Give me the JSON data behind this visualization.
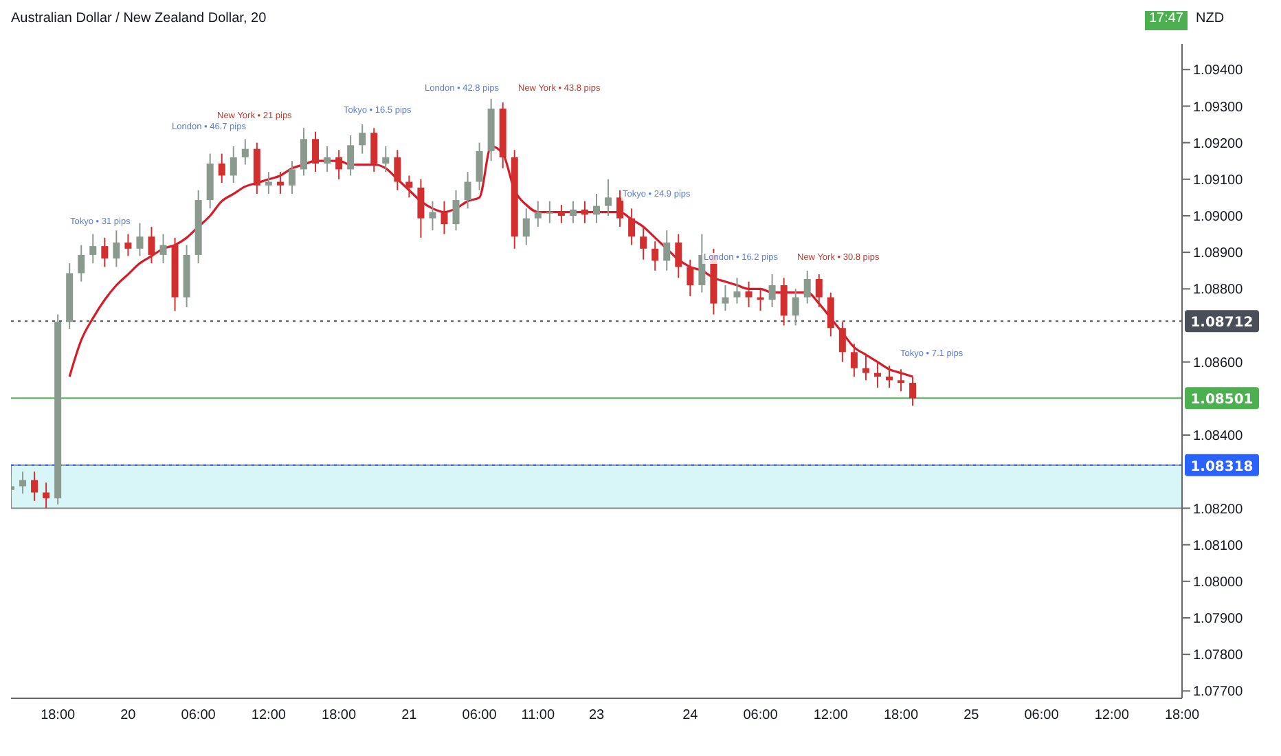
{
  "chart_data": {
    "type": "candlestick",
    "title": "Australian Dollar / New Zealand Dollar, 20",
    "ylabel": "NZD",
    "categories": [
      null,
      null,
      null,
      null,
      "18:00",
      null,
      null,
      null,
      null,
      null,
      "20",
      null,
      null,
      null,
      null,
      null,
      "06:00",
      null,
      null,
      null,
      null,
      null,
      "12:00",
      null,
      null,
      null,
      null,
      null,
      "18:00",
      null,
      null,
      null,
      null,
      null,
      "21",
      null,
      null,
      null,
      null,
      null,
      "06:00",
      null,
      null,
      null,
      null,
      "11:00",
      null,
      null,
      null,
      null,
      "23",
      null,
      null,
      null,
      null,
      null,
      null,
      null,
      "24",
      null,
      null,
      null,
      null,
      null,
      "06:00",
      null,
      null,
      null,
      null,
      null,
      "12:00",
      null,
      null,
      null,
      null,
      null,
      "18:00",
      null,
      null,
      null,
      null,
      null,
      "25",
      null,
      null,
      null,
      null,
      null,
      "06:00",
      null,
      null,
      null,
      null,
      null,
      "12:00",
      null,
      null,
      null,
      null,
      null,
      "18:00"
    ],
    "ohlc": [
      [
        1.0825,
        1.0829,
        1.0823,
        1.0826
      ],
      [
        1.0826,
        1.083,
        1.0824,
        1.08277
      ],
      [
        1.08277,
        1.083,
        1.0822,
        1.08243
      ],
      [
        1.08243,
        1.0827,
        1.082,
        1.08227
      ],
      [
        1.08227,
        1.0873,
        1.0821,
        1.0871
      ],
      [
        1.0871,
        1.0887,
        1.0869,
        1.08843
      ],
      [
        1.08843,
        1.0892,
        1.0882,
        1.08893
      ],
      [
        1.08893,
        1.0895,
        1.0887,
        1.08917
      ],
      [
        1.08917,
        1.0894,
        1.0886,
        1.08883
      ],
      [
        1.08883,
        1.0896,
        1.0886,
        1.08927
      ],
      [
        1.08927,
        1.0895,
        1.0889,
        1.0891
      ],
      [
        1.0891,
        1.0898,
        1.0889,
        1.08943
      ],
      [
        1.08943,
        1.0897,
        1.0887,
        1.08893
      ],
      [
        1.08893,
        1.0895,
        1.0887,
        1.0892
      ],
      [
        1.0892,
        1.0894,
        1.0874,
        1.08777
      ],
      [
        1.08777,
        1.0892,
        1.0875,
        1.08893
      ],
      [
        1.08893,
        1.0907,
        1.0887,
        1.09043
      ],
      [
        1.09043,
        1.0917,
        1.0902,
        1.09143
      ],
      [
        1.09143,
        1.0917,
        1.0909,
        1.0911
      ],
      [
        1.0911,
        1.0919,
        1.0909,
        1.0916
      ],
      [
        1.0916,
        1.0921,
        1.0914,
        1.09183
      ],
      [
        1.09183,
        1.092,
        1.0906,
        1.09083
      ],
      [
        1.09083,
        1.0912,
        1.0906,
        1.09093
      ],
      [
        1.09093,
        1.0912,
        1.0906,
        1.09083
      ],
      [
        1.09083,
        1.0915,
        1.0906,
        1.09127
      ],
      [
        1.09127,
        1.0924,
        1.0911,
        1.0921
      ],
      [
        1.0921,
        1.0923,
        1.0912,
        1.09143
      ],
      [
        1.09143,
        1.0919,
        1.0912,
        1.0916
      ],
      [
        1.0916,
        1.0918,
        1.091,
        1.09127
      ],
      [
        1.09127,
        1.0922,
        1.0911,
        1.09193
      ],
      [
        1.09193,
        1.0925,
        1.0917,
        1.09227
      ],
      [
        1.09227,
        1.0924,
        1.0912,
        1.09143
      ],
      [
        1.09143,
        1.0919,
        1.0912,
        1.0916
      ],
      [
        1.0916,
        1.0918,
        1.0907,
        1.09093
      ],
      [
        1.09093,
        1.0911,
        1.0905,
        1.09077
      ],
      [
        1.09077,
        1.091,
        1.0894,
        1.08993
      ],
      [
        1.08993,
        1.0904,
        1.0896,
        1.0901
      ],
      [
        1.0901,
        1.0904,
        1.0895,
        1.08977
      ],
      [
        1.08977,
        1.0907,
        1.0896,
        1.09043
      ],
      [
        1.09043,
        1.0912,
        1.0902,
        1.09093
      ],
      [
        1.09093,
        1.092,
        1.0907,
        1.09177
      ],
      [
        1.09177,
        1.0932,
        1.0915,
        1.09293
      ],
      [
        1.09293,
        1.0931,
        1.0913,
        1.0916
      ],
      [
        1.0916,
        1.0918,
        1.0891,
        1.08943
      ],
      [
        1.08943,
        1.0902,
        1.0892,
        1.08993
      ],
      [
        1.08993,
        1.0904,
        1.0897,
        1.0901
      ],
      [
        1.0901,
        1.0904,
        1.0898,
        1.0901
      ],
      [
        1.0901,
        1.0903,
        1.0898,
        1.09
      ],
      [
        1.09,
        1.0904,
        1.0898,
        1.09017
      ],
      [
        1.09017,
        1.0904,
        1.0898,
        1.09003
      ],
      [
        1.09003,
        1.0906,
        1.0898,
        1.09027
      ],
      [
        1.09027,
        1.091,
        1.09,
        1.0905
      ],
      [
        1.0905,
        1.0907,
        1.0897,
        1.08993
      ],
      [
        1.08993,
        1.0902,
        1.0892,
        1.08943
      ],
      [
        1.08943,
        1.0897,
        1.0888,
        1.0891
      ],
      [
        1.0891,
        1.0893,
        1.0885,
        1.08877
      ],
      [
        1.08877,
        1.0896,
        1.0885,
        1.08927
      ],
      [
        1.08927,
        1.0895,
        1.0883,
        1.0886
      ],
      [
        1.0886,
        1.0888,
        1.0878,
        1.0881
      ],
      [
        1.0881,
        1.0895,
        1.0879,
        1.08893
      ],
      [
        1.08893,
        1.0891,
        1.0873,
        1.0876
      ],
      [
        1.0876,
        1.0881,
        1.0874,
        1.08777
      ],
      [
        1.08777,
        1.0883,
        1.0876,
        1.08793
      ],
      [
        1.08793,
        1.0882,
        1.0875,
        1.08777
      ],
      [
        1.08777,
        1.088,
        1.0874,
        1.0877
      ],
      [
        1.0877,
        1.0884,
        1.0875,
        1.0881
      ],
      [
        1.0881,
        1.0883,
        1.087,
        1.08727
      ],
      [
        1.08727,
        1.088,
        1.087,
        1.08777
      ],
      [
        1.08777,
        1.0885,
        1.0876,
        1.08827
      ],
      [
        1.08827,
        1.0884,
        1.0875,
        1.08777
      ],
      [
        1.08777,
        1.0879,
        1.0867,
        1.08693
      ],
      [
        1.08693,
        1.0871,
        1.086,
        1.08627
      ],
      [
        1.08627,
        1.0865,
        1.0856,
        1.08583
      ],
      [
        1.08583,
        1.0862,
        1.0855,
        1.0857
      ],
      [
        1.0857,
        1.086,
        1.0853,
        1.0856
      ],
      [
        1.0856,
        1.0859,
        1.0853,
        1.0855
      ],
      [
        1.0855,
        1.0858,
        1.0852,
        1.08543
      ],
      [
        1.08543,
        1.0856,
        1.0848,
        1.08501
      ],
      null,
      null,
      null,
      null,
      null,
      null,
      null,
      null,
      null,
      null,
      null,
      null,
      null,
      null,
      null,
      null,
      null,
      null,
      null,
      null,
      null,
      null,
      null
    ],
    "colors": [
      "#8a9a8e",
      "#8a9a8e",
      "#d32f2f",
      "#d32f2f",
      "#8a9a8e",
      "#8a9a8e",
      "#8a9a8e",
      "#8a9a8e",
      "#d32f2f",
      "#8a9a8e",
      "#d32f2f",
      "#8a9a8e",
      "#d32f2f",
      "#8a9a8e",
      "#d32f2f",
      "#8a9a8e",
      "#8a9a8e",
      "#8a9a8e",
      "#d32f2f",
      "#8a9a8e",
      "#8a9a8e",
      "#d32f2f",
      "#8a9a8e",
      "#d32f2f",
      "#8a9a8e",
      "#8a9a8e",
      "#d32f2f",
      "#8a9a8e",
      "#d32f2f",
      "#8a9a8e",
      "#8a9a8e",
      "#d32f2f",
      "#8a9a8e",
      "#d32f2f",
      "#d32f2f",
      "#d32f2f",
      "#8a9a8e",
      "#d32f2f",
      "#8a9a8e",
      "#8a9a8e",
      "#8a9a8e",
      "#8a9a8e",
      "#d32f2f",
      "#d32f2f",
      "#8a9a8e",
      "#8a9a8e",
      "#8a9a8e",
      "#d32f2f",
      "#8a9a8e",
      "#d32f2f",
      "#8a9a8e",
      "#8a9a8e",
      "#d32f2f",
      "#d32f2f",
      "#d32f2f",
      "#d32f2f",
      "#8a9a8e",
      "#d32f2f",
      "#d32f2f",
      "#8a9a8e",
      "#d32f2f",
      "#8a9a8e",
      "#8a9a8e",
      "#d32f2f",
      "#d32f2f",
      "#8a9a8e",
      "#d32f2f",
      "#8a9a8e",
      "#8a9a8e",
      "#d32f2f",
      "#d32f2f",
      "#d32f2f",
      "#d32f2f",
      "#d32f2f",
      "#d32f2f",
      "#d32f2f",
      "#d32f2f",
      "#d32f2f",
      null,
      null,
      null,
      null,
      null,
      null,
      null,
      null,
      null,
      null,
      null,
      null,
      null,
      null,
      null,
      null,
      null,
      null,
      null,
      null,
      null,
      null,
      null
    ],
    "series": [
      {
        "type": "line",
        "color": "#d81b28",
        "values": [
          null,
          null,
          null,
          null,
          null,
          1.0856,
          1.0866,
          1.0872,
          1.0877,
          1.0881,
          1.0884,
          1.0887,
          1.0889,
          1.0891,
          1.0892,
          1.0894,
          1.0897,
          1.09,
          1.0904,
          1.0906,
          1.0908,
          1.0909,
          1.091,
          1.0911,
          1.0913,
          1.0914,
          1.0915,
          1.0915,
          1.0915,
          1.0914,
          1.0914,
          1.0914,
          1.0913,
          1.091,
          1.0907,
          1.0904,
          1.0902,
          1.0901,
          1.0902,
          1.0904,
          1.0905,
          1.0919,
          1.0917,
          1.0907,
          1.0903,
          1.0901,
          1.0901,
          1.0901,
          1.0901,
          1.0901,
          1.0901,
          1.0901,
          1.0901,
          1.0899,
          1.0897,
          1.0894,
          1.0891,
          1.0888,
          1.0886,
          1.0885,
          1.0883,
          1.0882,
          1.0881,
          1.088,
          1.088,
          1.0879,
          1.0879,
          1.0879,
          1.0879,
          1.0876,
          1.0872,
          1.0868,
          1.0864,
          1.0862,
          1.086,
          1.0858,
          1.0857,
          1.0856,
          null,
          null,
          null,
          null,
          null,
          null,
          null,
          null,
          null,
          null,
          null,
          null,
          null,
          null,
          null,
          null,
          null,
          null,
          null,
          null,
          null,
          null,
          null
        ]
      }
    ],
    "ylim": [
      1.0768,
      1.0947
    ],
    "yticks": [
      {
        "value": 1.094,
        "label": "1.09400"
      },
      {
        "value": 1.093,
        "label": "1.09300"
      },
      {
        "value": 1.092,
        "label": "1.09200"
      },
      {
        "value": 1.091,
        "label": "1.09100"
      },
      {
        "value": 1.09,
        "label": "1.09000"
      },
      {
        "value": 1.089,
        "label": "1.08900"
      },
      {
        "value": 1.088,
        "label": "1.08800"
      },
      {
        "value": 1.086,
        "label": "1.08600"
      },
      {
        "value": 1.084,
        "label": "1.08400"
      },
      {
        "value": 1.082,
        "label": "1.08200"
      },
      {
        "value": 1.081,
        "label": "1.08100"
      },
      {
        "value": 1.08,
        "label": "1.08000"
      },
      {
        "value": 1.079,
        "label": "1.07900"
      },
      {
        "value": 1.078,
        "label": "1.07800"
      },
      {
        "value": 1.077,
        "label": "1.07700"
      }
    ],
    "ref_lines": [
      {
        "axis": "y",
        "value": 1.08712,
        "label": "1.08712",
        "color": "#4a4e59",
        "line_style": "dotted"
      },
      {
        "axis": "y",
        "value": 1.08501,
        "label": "1.08501",
        "color": "#4caf50",
        "line_style": "solid"
      },
      {
        "axis": "y",
        "value": 1.08318,
        "label": "1.08318",
        "color": "#2962ff",
        "line_style": "dotted"
      }
    ],
    "bands": [
      {
        "axis": "y",
        "from": 1.082,
        "to": 1.08318,
        "color": "#b2ebf2"
      }
    ],
    "annotations": [
      "17:47",
      "Tokyo • 31 pips",
      "London • 46.7 pips",
      "New York • 21 pips",
      "Tokyo • 16.5 pips",
      "London • 42.8 pips",
      "New York • 43.8 pips",
      "Tokyo • 24.9 pips",
      "London • 16.2 pips",
      "New York • 30.8 pips",
      "Tokyo • 7.1 pips"
    ]
  }
}
